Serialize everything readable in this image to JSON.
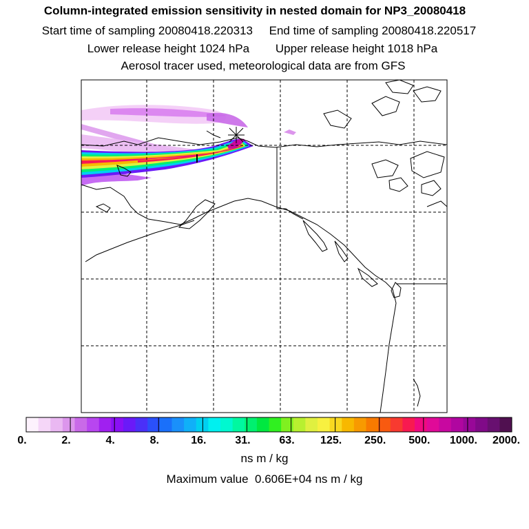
{
  "titles": {
    "line1": "Column-integrated emission sensitivity in nested domain for NP3_20080418",
    "start_label": "Start time of sampling 20080418.220313",
    "end_label": "End time of sampling 20080418.220517",
    "lower_label": "Lower release height 1024 hPa",
    "upper_label": "Upper release height 1018 hPa",
    "line4": "Aerosol tracer used, meteorological data are from GFS"
  },
  "colorbar": {
    "tick_labels": [
      "0.",
      "2.",
      "4.",
      "8.",
      "16.",
      "31.",
      "63.",
      "125.",
      "250.",
      "500.",
      "1000.",
      "2000."
    ],
    "colors": [
      "#fdf2fd",
      "#f5d6f8",
      "#eab8f2",
      "#dc96ec",
      "#c96ae8",
      "#b846f0",
      "#a020f0",
      "#8a10f5",
      "#6a1af8",
      "#4a30f8",
      "#2a50fa",
      "#1a70fa",
      "#1a90fa",
      "#10b0f8",
      "#00d0f0",
      "#00f0f0",
      "#00f8d0",
      "#00f8a0",
      "#00f070",
      "#00e840",
      "#30f020",
      "#80f020",
      "#b8f030",
      "#e0f040",
      "#f8f040",
      "#f8d820",
      "#f8b800",
      "#f89a00",
      "#f87a00",
      "#f85a10",
      "#f83a30",
      "#f81a50",
      "#f00a80",
      "#e00a98",
      "#c808a0",
      "#b006a0",
      "#980898",
      "#800a88",
      "#681070",
      "#501050"
    ],
    "units": "ns m / kg"
  },
  "max_value_text": "Maximum value  0.606E+04 ns m / kg"
}
